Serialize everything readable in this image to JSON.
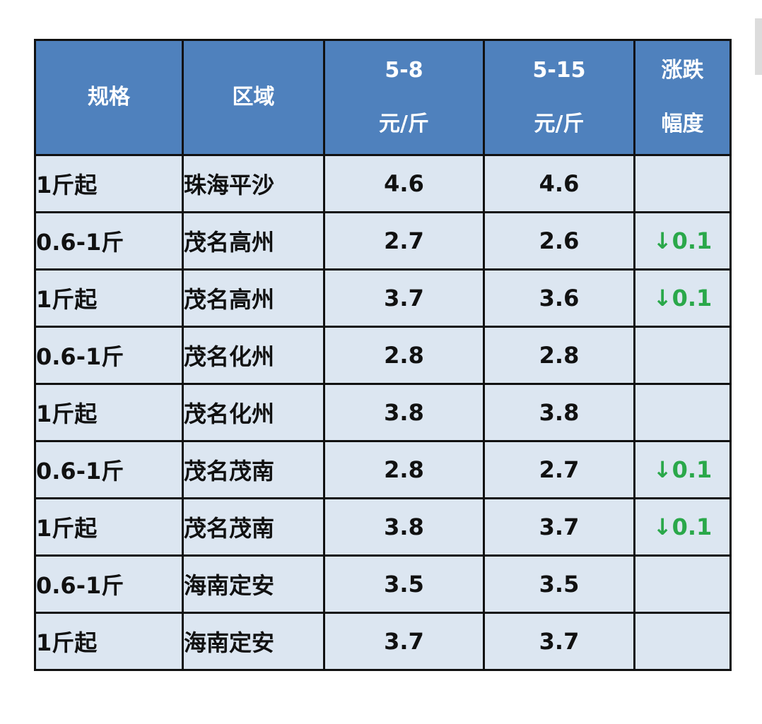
{
  "headers": {
    "spec": "规格",
    "region": "区域",
    "price1_date": "5-8",
    "price1_unit": "元/斤",
    "price2_date": "5-15",
    "price2_unit": "元/斤",
    "change_line1": "涨跌",
    "change_line2": "幅度"
  },
  "rows": [
    {
      "spec": "1斤起",
      "region": "珠海平沙",
      "p1": "4.6",
      "p2": "4.6",
      "change": ""
    },
    {
      "spec": "0.6-1斤",
      "region": "茂名高州",
      "p1": "2.7",
      "p2": "2.6",
      "change": "↓0.1"
    },
    {
      "spec": "1斤起",
      "region": "茂名高州",
      "p1": "3.7",
      "p2": "3.6",
      "change": "↓0.1"
    },
    {
      "spec": "0.6-1斤",
      "region": "茂名化州",
      "p1": "2.8",
      "p2": "2.8",
      "change": ""
    },
    {
      "spec": "1斤起",
      "region": "茂名化州",
      "p1": "3.8",
      "p2": "3.8",
      "change": ""
    },
    {
      "spec": "0.6-1斤",
      "region": "茂名茂南",
      "p1": "2.8",
      "p2": "2.7",
      "change": "↓0.1"
    },
    {
      "spec": "1斤起",
      "region": "茂名茂南",
      "p1": "3.8",
      "p2": "3.7",
      "change": "↓0.1"
    },
    {
      "spec": "0.6-1斤",
      "region": "海南定安",
      "p1": "3.5",
      "p2": "3.5",
      "change": ""
    },
    {
      "spec": "1斤起",
      "region": "海南定安",
      "p1": "3.7",
      "p2": "3.7",
      "change": ""
    }
  ],
  "colors": {
    "header_bg": "#4f81bd",
    "cell_bg": "#dce6f1",
    "decrease": "#2aa84a"
  }
}
